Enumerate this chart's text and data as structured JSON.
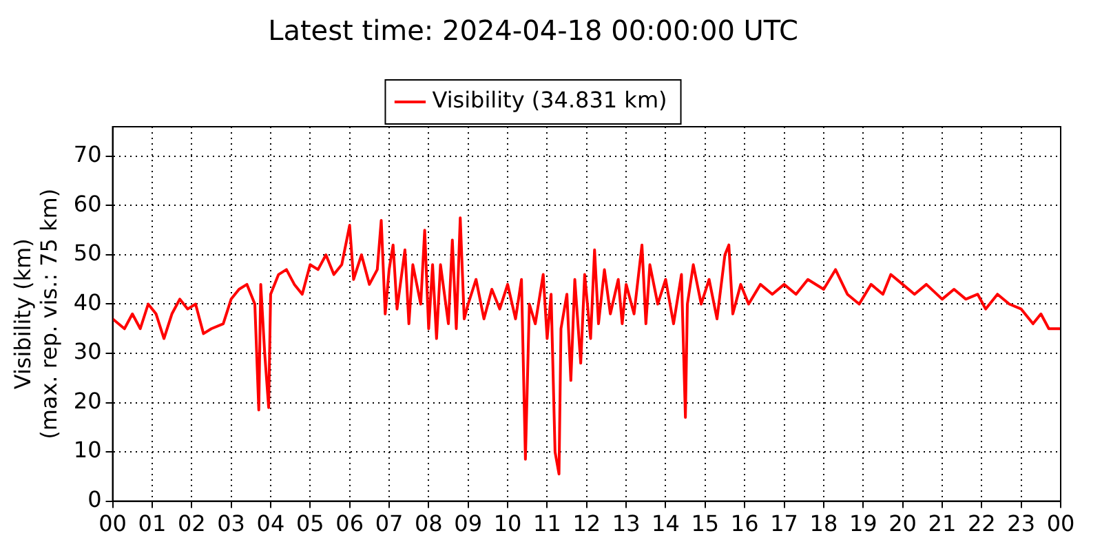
{
  "chart_data": {
    "type": "line",
    "title": "Latest time: 2024-04-18 00:00:00 UTC",
    "ylabel": "Visibility (km)\n(max. rep. vis.: 75 km)",
    "x": [
      0,
      0.3,
      0.5,
      0.7,
      0.9,
      1.1,
      1.3,
      1.5,
      1.7,
      1.9,
      2.1,
      2.3,
      2.5,
      2.8,
      3.0,
      3.2,
      3.4,
      3.6,
      3.7,
      3.75,
      3.85,
      3.95,
      4.0,
      4.2,
      4.4,
      4.6,
      4.8,
      5.0,
      5.2,
      5.4,
      5.6,
      5.8,
      6.0,
      6.1,
      6.3,
      6.5,
      6.7,
      6.8,
      6.9,
      7.0,
      7.1,
      7.2,
      7.4,
      7.5,
      7.6,
      7.8,
      7.9,
      8.0,
      8.1,
      8.2,
      8.3,
      8.5,
      8.6,
      8.7,
      8.8,
      8.9,
      9.0,
      9.2,
      9.4,
      9.6,
      9.8,
      10.0,
      10.2,
      10.35,
      10.45,
      10.55,
      10.7,
      10.9,
      11.0,
      11.1,
      11.2,
      11.3,
      11.35,
      11.5,
      11.6,
      11.7,
      11.85,
      11.95,
      12.1,
      12.2,
      12.3,
      12.45,
      12.6,
      12.8,
      12.9,
      13.0,
      13.2,
      13.4,
      13.5,
      13.6,
      13.8,
      14.0,
      14.2,
      14.4,
      14.5,
      14.55,
      14.7,
      14.9,
      15.1,
      15.3,
      15.5,
      15.6,
      15.7,
      15.9,
      16.1,
      16.4,
      16.7,
      17.0,
      17.3,
      17.6,
      18.0,
      18.3,
      18.6,
      18.9,
      19.2,
      19.5,
      19.7,
      20.0,
      20.3,
      20.6,
      21.0,
      21.3,
      21.6,
      21.9,
      22.1,
      22.4,
      22.7,
      23.0,
      23.3,
      23.5,
      23.7,
      24.0
    ],
    "series": [
      {
        "name": "Visibility (34.831 km)",
        "color": "#ff0000",
        "values": [
          37,
          35,
          38,
          35,
          40,
          38,
          33,
          38,
          41,
          39,
          40,
          34,
          35,
          36,
          41,
          43,
          44,
          40,
          18.5,
          44,
          30,
          19,
          42,
          46,
          47,
          44,
          42,
          48,
          47,
          50,
          46,
          48,
          56,
          45,
          50,
          44,
          47,
          57,
          38,
          47,
          52,
          39,
          51,
          36,
          48,
          40,
          55,
          35,
          48,
          33,
          48,
          36,
          53,
          35,
          57.5,
          37,
          40,
          45,
          37,
          43,
          39,
          44,
          37,
          45,
          8.5,
          40,
          36,
          46,
          33,
          42,
          10,
          5.5,
          35,
          42,
          24.5,
          45,
          28,
          46,
          33,
          51,
          36,
          47,
          38,
          45,
          36,
          44,
          38,
          52,
          36,
          48,
          40,
          45,
          36,
          46,
          17,
          40,
          48,
          40,
          45,
          37,
          50,
          52,
          38,
          44,
          40,
          44,
          42,
          44,
          42,
          45,
          43,
          47,
          42,
          40,
          44,
          42,
          46,
          44,
          42,
          44,
          41,
          43,
          41,
          42,
          39,
          42,
          40,
          39,
          36,
          38,
          35,
          35
        ]
      }
    ],
    "xlim": [
      0,
      24
    ],
    "xticks": [
      {
        "value": 0,
        "label": "00"
      },
      {
        "value": 1,
        "label": "01"
      },
      {
        "value": 2,
        "label": "02"
      },
      {
        "value": 3,
        "label": "03"
      },
      {
        "value": 4,
        "label": "04"
      },
      {
        "value": 5,
        "label": "05"
      },
      {
        "value": 6,
        "label": "06"
      },
      {
        "value": 7,
        "label": "07"
      },
      {
        "value": 8,
        "label": "08"
      },
      {
        "value": 9,
        "label": "09"
      },
      {
        "value": 10,
        "label": "10"
      },
      {
        "value": 11,
        "label": "11"
      },
      {
        "value": 12,
        "label": "12"
      },
      {
        "value": 13,
        "label": "13"
      },
      {
        "value": 14,
        "label": "14"
      },
      {
        "value": 15,
        "label": "15"
      },
      {
        "value": 16,
        "label": "16"
      },
      {
        "value": 17,
        "label": "17"
      },
      {
        "value": 18,
        "label": "18"
      },
      {
        "value": 19,
        "label": "19"
      },
      {
        "value": 20,
        "label": "20"
      },
      {
        "value": 21,
        "label": "21"
      },
      {
        "value": 22,
        "label": "22"
      },
      {
        "value": 23,
        "label": "23"
      },
      {
        "value": 24,
        "label": "00"
      }
    ],
    "ylim": [
      0,
      76
    ],
    "yticks": [
      0,
      10,
      20,
      30,
      40,
      50,
      60,
      70
    ],
    "grid": true,
    "legend": "top",
    "marker": "none",
    "line_style": "solid"
  }
}
